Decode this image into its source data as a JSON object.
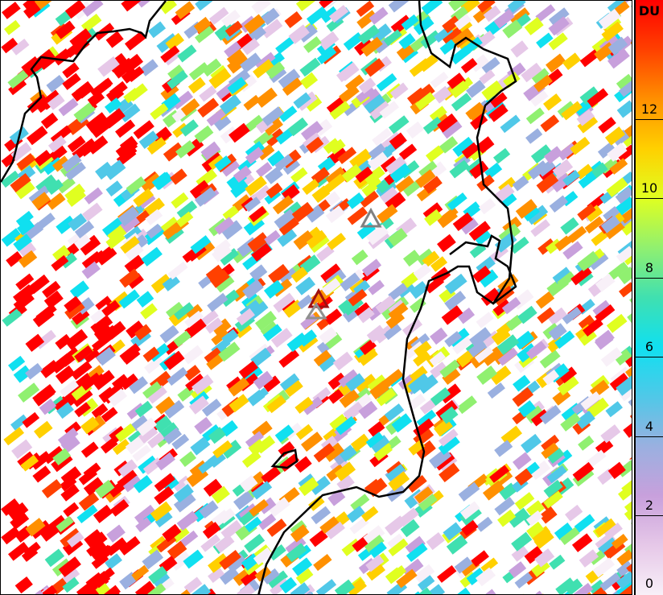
{
  "colorbar": {
    "unit": "DU",
    "ticks": [
      "0",
      "2",
      "4",
      "6",
      "8",
      "10",
      "12"
    ],
    "range": [
      0,
      15
    ],
    "colors": [
      "#f8f0f8",
      "#e6c8e8",
      "#c8a0dc",
      "#9ab0e0",
      "#50c8e8",
      "#10e0f0",
      "#40e0b0",
      "#90f070",
      "#e0ff20",
      "#ffd000",
      "#ff9000",
      "#ff4000",
      "#ff0000"
    ]
  },
  "markers": [
    {
      "type": "triangle",
      "color": "#808080"
    },
    {
      "type": "triangle",
      "color": "#a01010"
    },
    {
      "type": "triangle",
      "color": "#909090"
    }
  ]
}
